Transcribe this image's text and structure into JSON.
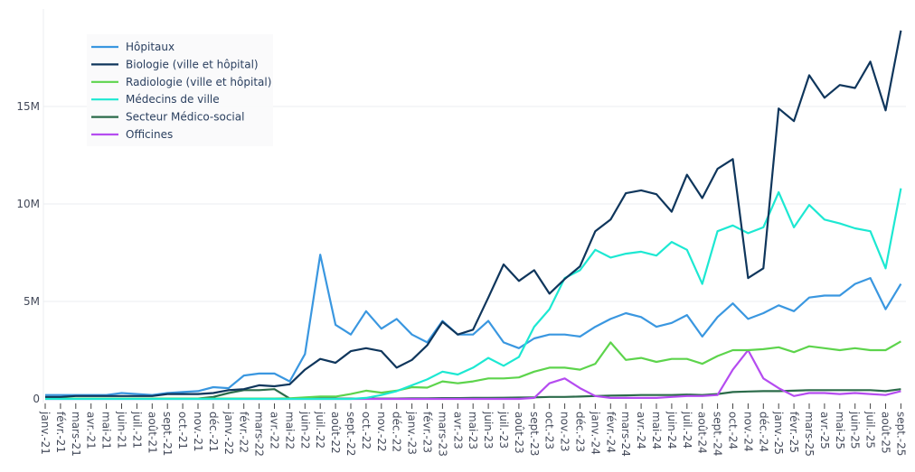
{
  "chart_data": {
    "type": "line",
    "title": "",
    "xlabel": "",
    "ylabel": "",
    "ylim": [
      0,
      19500000
    ],
    "yticks": [
      0,
      5000000,
      10000000,
      15000000
    ],
    "ytick_labels": [
      "0",
      "5M",
      "10M",
      "15M"
    ],
    "grid": true,
    "legend_position": "top-left",
    "x": [
      "janv.-21",
      "févr.-21",
      "mars-21",
      "avr.-21",
      "mai-21",
      "juin-21",
      "juil.-21",
      "août-21",
      "sept.-21",
      "oct.-21",
      "nov.-21",
      "déc.-21",
      "janv.-22",
      "févr.-22",
      "mars-22",
      "avr.-22",
      "mai-22",
      "juin-22",
      "juil.-22",
      "août-22",
      "sept.-22",
      "oct.-22",
      "nov.-22",
      "déc.-22",
      "janv.-23",
      "févr.-23",
      "mars-23",
      "avr.-23",
      "mai-23",
      "juin-23",
      "juil.-23",
      "août-23",
      "sept.-23",
      "oct.-23",
      "nov.-23",
      "déc.-23",
      "janv.-24",
      "févr.-24",
      "mars-24",
      "avr.-24",
      "mai-24",
      "juin-24",
      "juil.-24",
      "août-24",
      "sept.-24",
      "oct.-24",
      "nov.-24",
      "déc.-24",
      "janv.-25",
      "févr.-25",
      "mars-25",
      "avr.-25",
      "mai-25",
      "juin-25",
      "juil.-25",
      "août-25",
      "sept.-25"
    ],
    "series": [
      {
        "name": "Hôpitaux",
        "color": "#3a97e0",
        "values_millions": [
          0.2,
          0.2,
          0.2,
          0.2,
          0.2,
          0.3,
          0.25,
          0.2,
          0.3,
          0.35,
          0.4,
          0.6,
          0.55,
          1.2,
          1.3,
          1.3,
          0.9,
          2.3,
          7.4,
          3.8,
          3.3,
          4.5,
          3.6,
          4.1,
          3.3,
          2.9,
          4.0,
          3.3,
          3.3,
          4.0,
          2.9,
          2.6,
          3.1,
          3.3,
          3.3,
          3.2,
          3.7,
          4.1,
          4.4,
          4.2,
          3.7,
          3.9,
          4.3,
          3.2,
          4.2,
          4.9,
          4.1,
          4.4,
          4.8,
          4.5,
          5.2,
          5.3,
          5.3,
          5.9,
          6.2,
          4.6,
          5.9
        ]
      },
      {
        "name": "Biologie (ville et hôpital)",
        "color": "#0f365c",
        "values_millions": [
          0.1,
          0.1,
          0.15,
          0.15,
          0.15,
          0.15,
          0.15,
          0.15,
          0.25,
          0.25,
          0.25,
          0.3,
          0.45,
          0.5,
          0.7,
          0.65,
          0.75,
          1.5,
          2.05,
          1.85,
          2.45,
          2.6,
          2.45,
          1.6,
          2.0,
          2.75,
          3.95,
          3.3,
          3.55,
          5.2,
          6.9,
          6.05,
          6.6,
          5.4,
          6.15,
          6.8,
          8.6,
          9.2,
          10.55,
          10.7,
          10.5,
          9.6,
          11.5,
          10.3,
          11.8,
          12.3,
          6.2,
          6.7,
          14.9,
          14.25,
          16.6,
          15.45,
          16.1,
          15.95,
          17.3,
          14.8,
          18.9
        ]
      },
      {
        "name": "Radiologie (ville et hôpital)",
        "color": "#5dd44c",
        "values_millions": [
          0.02,
          0.02,
          0.02,
          0.02,
          0.02,
          0.02,
          0.02,
          0.02,
          0.02,
          0.02,
          0.02,
          0.02,
          0.02,
          0.02,
          0.02,
          0.02,
          0.03,
          0.08,
          0.12,
          0.12,
          0.25,
          0.42,
          0.32,
          0.42,
          0.6,
          0.58,
          0.9,
          0.8,
          0.9,
          1.05,
          1.05,
          1.1,
          1.4,
          1.6,
          1.6,
          1.5,
          1.8,
          2.9,
          2.0,
          2.1,
          1.9,
          2.05,
          2.05,
          1.8,
          2.2,
          2.5,
          2.5,
          2.55,
          2.65,
          2.4,
          2.7,
          2.6,
          2.5,
          2.6,
          2.5,
          2.5,
          2.95
        ]
      },
      {
        "name": "Médecins de ville",
        "color": "#1de8d2",
        "values_millions": [
          0,
          0,
          0,
          0,
          0,
          0,
          0,
          0,
          0,
          0,
          0,
          0,
          0,
          0,
          0,
          0,
          0,
          0,
          0,
          0,
          0,
          0.05,
          0.2,
          0.4,
          0.7,
          1.0,
          1.4,
          1.25,
          1.6,
          2.1,
          1.7,
          2.15,
          3.7,
          4.6,
          6.2,
          6.6,
          7.65,
          7.25,
          7.45,
          7.55,
          7.35,
          8.05,
          7.65,
          5.9,
          8.6,
          8.9,
          8.5,
          8.8,
          10.6,
          8.8,
          9.95,
          9.2,
          9.0,
          8.75,
          8.6,
          6.7,
          10.8
        ]
      },
      {
        "name": "Secteur Médico-social",
        "color": "#2b6b4a",
        "values_millions": [
          0.02,
          0.02,
          0.02,
          0.02,
          0.02,
          0.02,
          0.02,
          0.02,
          0.02,
          0.02,
          0.02,
          0.1,
          0.3,
          0.45,
          0.45,
          0.5,
          0.02,
          0.02,
          0.02,
          0.02,
          0.02,
          0.02,
          0.02,
          0.02,
          0.03,
          0.03,
          0.04,
          0.04,
          0.05,
          0.05,
          0.06,
          0.07,
          0.08,
          0.1,
          0.1,
          0.12,
          0.15,
          0.17,
          0.18,
          0.2,
          0.2,
          0.2,
          0.22,
          0.2,
          0.25,
          0.35,
          0.38,
          0.4,
          0.4,
          0.42,
          0.45,
          0.45,
          0.45,
          0.45,
          0.45,
          0.4,
          0.5
        ]
      },
      {
        "name": "Officines",
        "color": "#b54cf0",
        "values_millions": [
          0,
          0,
          0,
          0,
          0,
          0,
          0,
          0,
          0,
          0,
          0,
          0,
          0,
          0,
          0,
          0,
          0,
          0,
          0,
          0,
          0,
          0,
          0,
          0,
          0,
          0,
          0,
          0,
          0,
          0,
          0,
          0,
          0.05,
          0.8,
          1.05,
          0.55,
          0.15,
          0.05,
          0.05,
          0.05,
          0.05,
          0.1,
          0.15,
          0.15,
          0.2,
          1.5,
          2.5,
          1.05,
          0.55,
          0.15,
          0.3,
          0.3,
          0.25,
          0.3,
          0.25,
          0.2,
          0.4
        ]
      }
    ]
  }
}
